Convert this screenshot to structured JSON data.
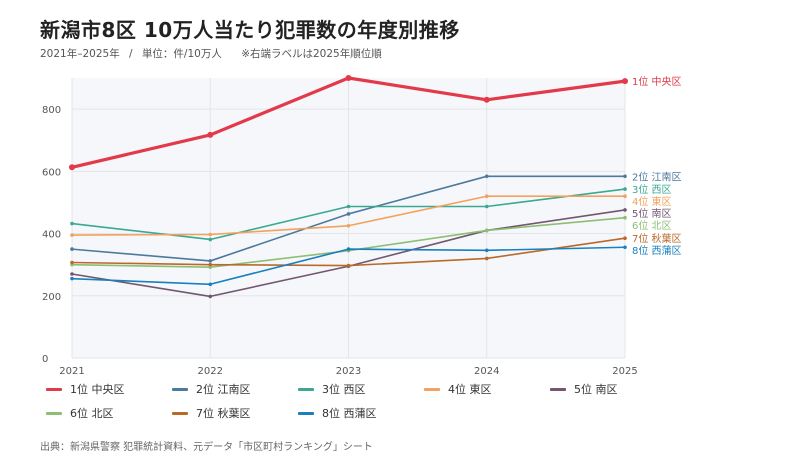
{
  "title": "新潟市8区 10万人当たり犯罪数の年度別推移",
  "subtitle": {
    "period": "2021年–2025年",
    "separator": "/",
    "unit": "単位：件/10万人",
    "note": "※右端ラベルは2025年順位順"
  },
  "source": "出典：新潟県警察 犯罪統計資料、元データ「市区町村ランキング」シート",
  "chart_data": {
    "type": "line",
    "x": [
      "2021",
      "2022",
      "2023",
      "2024",
      "2025"
    ],
    "ylim": [
      0,
      900
    ],
    "yticks": [
      "0",
      "200",
      "400",
      "600",
      "800"
    ],
    "grid": true,
    "legend_position": "bottom",
    "series": [
      {
        "name": "1位 中央区",
        "color": "#e23a4a",
        "values": [
          613,
          717,
          900,
          830,
          890
        ],
        "emphasis": true
      },
      {
        "name": "2位 江南区",
        "color": "#4c7a9c",
        "values": [
          350,
          312,
          463,
          584,
          584
        ]
      },
      {
        "name": "3位 西区",
        "color": "#3aa892",
        "values": [
          432,
          381,
          487,
          487,
          543
        ]
      },
      {
        "name": "4位 東区",
        "color": "#f2a25c",
        "values": [
          395,
          397,
          425,
          520,
          520
        ]
      },
      {
        "name": "5位 南区",
        "color": "#735670",
        "values": [
          270,
          198,
          295,
          410,
          476
        ]
      },
      {
        "name": "6位 北区",
        "color": "#8dbe74",
        "values": [
          300,
          292,
          345,
          410,
          451
        ]
      },
      {
        "name": "7位 秋葉区",
        "color": "#b86a2a",
        "values": [
          307,
          300,
          297,
          320,
          385
        ]
      },
      {
        "name": "8位 西蒲区",
        "color": "#1a7fbf",
        "values": [
          255,
          237,
          350,
          346,
          356
        ]
      }
    ]
  }
}
